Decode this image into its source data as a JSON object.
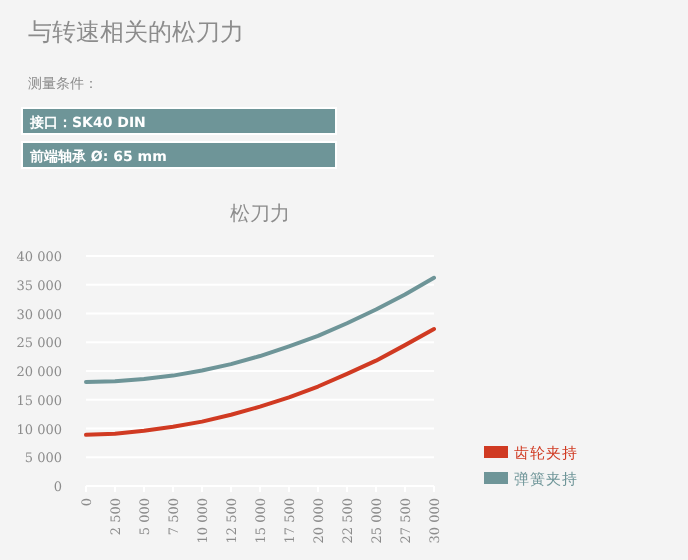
{
  "chart_data": {
    "type": "line",
    "title": "松刀力",
    "annotations": [
      "与转速相关的松刀力",
      "测量条件：",
      "接口：SK40 DIN",
      "前端轴承 Ø: 65 mm"
    ],
    "x": [
      0,
      2500,
      5000,
      7500,
      10000,
      12500,
      15000,
      17500,
      20000,
      22500,
      25000,
      27500,
      30000
    ],
    "series": [
      {
        "name": "齿轮夹持",
        "color": "#d03a22",
        "values": [
          8900,
          9100,
          9600,
          10300,
          11200,
          12400,
          13800,
          15400,
          17300,
          19500,
          21800,
          24500,
          27300
        ]
      },
      {
        "name": "弹簧夹持",
        "color": "#6e9598",
        "values": [
          18100,
          18200,
          18600,
          19200,
          20100,
          21200,
          22600,
          24300,
          26100,
          28300,
          30700,
          33300,
          36200
        ]
      }
    ],
    "xlim": [
      0,
      30000
    ],
    "xticks": [
      0,
      {
        "value": 2500,
        "label": "2 500"
      },
      {
        "value": 5000,
        "label": "5 000"
      },
      {
        "value": 7500,
        "label": "7 500"
      },
      {
        "value": 10000,
        "label": "10 000"
      },
      {
        "value": 12500,
        "label": "12 500"
      },
      {
        "value": 15000,
        "label": "15 000"
      },
      {
        "value": 17500,
        "label": "17 500"
      },
      {
        "value": 20000,
        "label": "20 000"
      },
      {
        "value": 22500,
        "label": "22 500"
      },
      {
        "value": 25000,
        "label": "25 000"
      },
      {
        "value": 27500,
        "label": "27 500"
      },
      {
        "value": 30000,
        "label": "30 000"
      }
    ],
    "ylim": [
      0,
      40000
    ],
    "yticks": [
      0,
      {
        "value": 5000,
        "label": "5 000"
      },
      {
        "value": 10000,
        "label": "10 000"
      },
      {
        "value": 15000,
        "label": "15 000"
      },
      {
        "value": 20000,
        "label": "20 000"
      },
      {
        "value": 25000,
        "label": "25 000"
      },
      {
        "value": 30000,
        "label": "30 000"
      },
      {
        "value": 35000,
        "label": "35 000"
      },
      {
        "value": 40000,
        "label": "40 000"
      }
    ],
    "grid": "y",
    "legend": "right",
    "marker": "none",
    "line_style": "solid"
  }
}
